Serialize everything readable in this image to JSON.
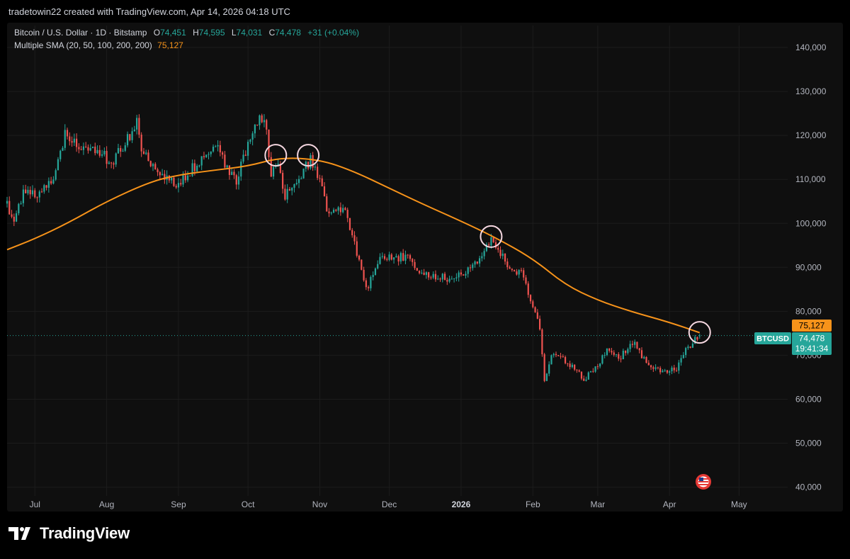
{
  "header": {
    "text": "tradetowin22 created with TradingView.com, Apr 14, 2026 04:18 UTC"
  },
  "legend": {
    "symbol": "Bitcoin / U.S. Dollar · 1D · Bitstamp",
    "o_label": "O",
    "o_value": "74,451",
    "h_label": "H",
    "h_value": "74,595",
    "l_label": "L",
    "l_value": "74,031",
    "c_label": "C",
    "c_value": "74,478",
    "change": "+31 (+0.04%)",
    "indicator_name": "Multiple SMA (20, 50, 100, 200, 200)",
    "indicator_value": "75,127"
  },
  "price_tags": {
    "sma": "75,127",
    "symbol": "BTCUSD",
    "price": "74,478",
    "countdown": "19:41:34"
  },
  "brand": {
    "name": "TradingView"
  },
  "colors": {
    "up": "#26a69a",
    "down": "#ef5350",
    "sma": "#f7931a",
    "circle": "#f5d7e0",
    "text": "#b2b5be",
    "grid": "#1c1c1c"
  },
  "icons": [
    "tradingview-logo-icon",
    "us-flag-icon"
  ],
  "chart_data": {
    "type": "candlestick",
    "title": "Bitcoin / U.S. Dollar · 1D · Bitstamp",
    "x_range": [
      "2025-06-19",
      "2026-05-22"
    ],
    "y_range": [
      38000,
      145000
    ],
    "y_ticks": [
      40000,
      50000,
      60000,
      70000,
      80000,
      90000,
      100000,
      110000,
      120000,
      130000,
      140000
    ],
    "y_tick_labels": [
      "40,000",
      "50,000",
      "60,000",
      "70,000",
      "80,000",
      "90,000",
      "100,000",
      "110,000",
      "120,000",
      "130,000",
      "140,000"
    ],
    "x_ticks": [
      {
        "date": "2025-07-01",
        "label": "Jul"
      },
      {
        "date": "2025-08-01",
        "label": "Aug"
      },
      {
        "date": "2025-09-01",
        "label": "Sep"
      },
      {
        "date": "2025-10-01",
        "label": "Oct"
      },
      {
        "date": "2025-11-01",
        "label": "Nov"
      },
      {
        "date": "2025-12-01",
        "label": "Dec"
      },
      {
        "date": "2026-01-01",
        "label": "2026"
      },
      {
        "date": "2026-02-01",
        "label": "Feb"
      },
      {
        "date": "2026-03-01",
        "label": "Mar"
      },
      {
        "date": "2026-04-01",
        "label": "Apr"
      },
      {
        "date": "2026-05-01",
        "label": "May"
      }
    ],
    "price_path": [
      [
        "2025-06-19",
        104500
      ],
      [
        "2025-06-22",
        100500
      ],
      [
        "2025-06-26",
        107000
      ],
      [
        "2025-07-01",
        106500
      ],
      [
        "2025-07-09",
        110000
      ],
      [
        "2025-07-14",
        120000
      ],
      [
        "2025-07-20",
        118000
      ],
      [
        "2025-07-31",
        116000
      ],
      [
        "2025-08-02",
        113000
      ],
      [
        "2025-08-10",
        119000
      ],
      [
        "2025-08-14",
        123000
      ],
      [
        "2025-08-16",
        117500
      ],
      [
        "2025-08-20",
        113000
      ],
      [
        "2025-08-25",
        111000
      ],
      [
        "2025-09-01",
        108500
      ],
      [
        "2025-09-05",
        111500
      ],
      [
        "2025-09-12",
        115000
      ],
      [
        "2025-09-18",
        117000
      ],
      [
        "2025-09-22",
        112500
      ],
      [
        "2025-09-26",
        109500
      ],
      [
        "2025-10-02",
        120000
      ],
      [
        "2025-10-06",
        124500
      ],
      [
        "2025-10-09",
        121000
      ],
      [
        "2025-10-11",
        110500
      ],
      [
        "2025-10-14",
        114000
      ],
      [
        "2025-10-17",
        106500
      ],
      [
        "2025-10-21",
        109000
      ],
      [
        "2025-10-28",
        114500
      ],
      [
        "2025-11-01",
        110000
      ],
      [
        "2025-11-04",
        103500
      ],
      [
        "2025-11-08",
        102500
      ],
      [
        "2025-11-12",
        104000
      ],
      [
        "2025-11-16",
        95000
      ],
      [
        "2025-11-21",
        85000
      ],
      [
        "2025-11-27",
        91500
      ],
      [
        "2025-12-03",
        92500
      ],
      [
        "2025-12-09",
        92000
      ],
      [
        "2025-12-14",
        88500
      ],
      [
        "2025-12-20",
        88000
      ],
      [
        "2025-12-27",
        87500
      ],
      [
        "2026-01-01",
        88000
      ],
      [
        "2026-01-08",
        91500
      ],
      [
        "2026-01-14",
        96500
      ],
      [
        "2026-01-18",
        93500
      ],
      [
        "2026-01-22",
        89500
      ],
      [
        "2026-01-27",
        88500
      ],
      [
        "2026-01-31",
        83000
      ],
      [
        "2026-02-04",
        76000
      ],
      [
        "2026-02-06",
        64000
      ],
      [
        "2026-02-09",
        70000
      ],
      [
        "2026-02-16",
        68500
      ],
      [
        "2026-02-23",
        64500
      ],
      [
        "2026-03-01",
        67500
      ],
      [
        "2026-03-05",
        71500
      ],
      [
        "2026-03-10",
        69000
      ],
      [
        "2026-03-17",
        73500
      ],
      [
        "2026-03-20",
        70000
      ],
      [
        "2026-03-23",
        67500
      ],
      [
        "2026-03-28",
        66500
      ],
      [
        "2026-04-04",
        67000
      ],
      [
        "2026-04-09",
        72000
      ],
      [
        "2026-04-14",
        74478
      ]
    ],
    "sma_line": {
      "name": "Multiple SMA (20, 50, 100, 200, 200)",
      "points": [
        [
          "2025-06-19",
          94000
        ],
        [
          "2025-07-01",
          96500
        ],
        [
          "2025-07-15",
          100000
        ],
        [
          "2025-08-01",
          105000
        ],
        [
          "2025-08-20",
          109500
        ],
        [
          "2025-09-01",
          111000
        ],
        [
          "2025-09-15",
          112000
        ],
        [
          "2025-10-01",
          113000
        ],
        [
          "2025-10-15",
          115000
        ],
        [
          "2025-11-01",
          114500
        ],
        [
          "2025-11-15",
          112000
        ],
        [
          "2025-12-01",
          108000
        ],
        [
          "2025-12-15",
          104500
        ],
        [
          "2026-01-01",
          100500
        ],
        [
          "2026-01-15",
          97000
        ],
        [
          "2026-02-01",
          92000
        ],
        [
          "2026-02-15",
          86000
        ],
        [
          "2026-03-01",
          82500
        ],
        [
          "2026-03-15",
          80000
        ],
        [
          "2026-04-01",
          77500
        ],
        [
          "2026-04-14",
          75127
        ]
      ]
    },
    "markers": [
      {
        "date": "2025-10-13",
        "value": 115500
      },
      {
        "date": "2025-10-27",
        "value": 115500
      },
      {
        "date": "2026-01-14",
        "value": 97000
      },
      {
        "date": "2026-04-14",
        "value": 75200
      }
    ],
    "last_price": 74478,
    "sma_value": 75127
  }
}
